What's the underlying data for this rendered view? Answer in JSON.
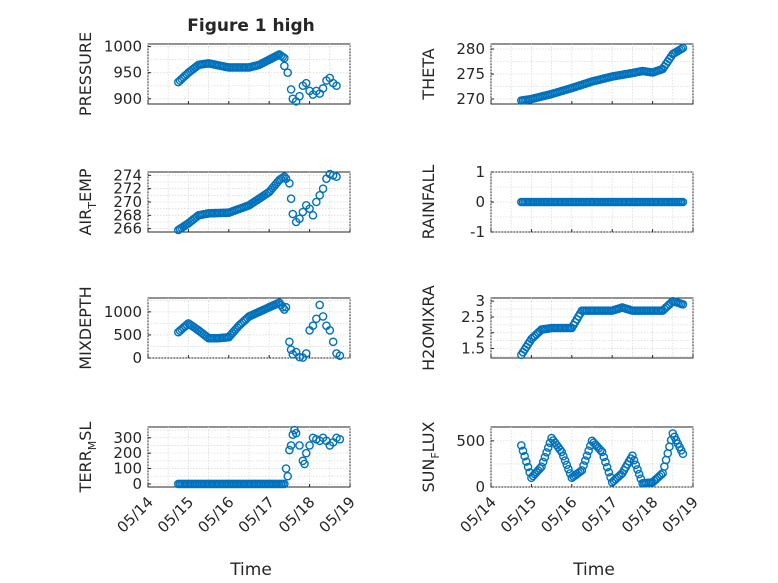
{
  "figure": {
    "title": "Figure 1 high",
    "xlabel": "Time"
  },
  "colors": {
    "marker": "#0072BD",
    "axes": "#262626",
    "grid": "#dcdcdc"
  },
  "chart_data": [
    {
      "id": "pressure",
      "type": "scatter",
      "title": "Figure 1 high",
      "ylabel": "PRESSURE",
      "xticks": [
        "05/14",
        "05/15",
        "05/16",
        "05/17",
        "05/18",
        "05/19"
      ],
      "xlim": [
        "05/14",
        "05/19"
      ],
      "ylim": [
        890,
        1005
      ],
      "yticks": [
        900,
        950,
        1000
      ],
      "x_knots": [
        "05/14 18:00",
        "05/15 00:00",
        "05/15 06:00",
        "05/15 12:00",
        "05/16 00:00",
        "05/16 12:00",
        "05/16 18:00",
        "05/17 00:00",
        "05/17 06:00",
        "05/17 09:00"
      ],
      "y_knots": [
        932,
        950,
        965,
        968,
        960,
        960,
        965,
        975,
        985,
        978
      ],
      "points": [
        [
          "05/17 09:00",
          963
        ],
        [
          "05/17 11:00",
          950
        ],
        [
          "05/17 13:00",
          918
        ],
        [
          "05/17 14:00",
          900
        ],
        [
          "05/17 16:00",
          895
        ],
        [
          "05/17 18:00",
          905
        ],
        [
          "05/17 20:00",
          925
        ],
        [
          "05/17 22:00",
          930
        ],
        [
          "05/18 00:00",
          915
        ],
        [
          "05/18 02:00",
          908
        ],
        [
          "05/18 04:00",
          915
        ],
        [
          "05/18 06:00",
          910
        ],
        [
          "05/18 08:00",
          920
        ],
        [
          "05/18 10:00",
          935
        ],
        [
          "05/18 12:00",
          940
        ],
        [
          "05/18 14:00",
          930
        ],
        [
          "05/18 16:00",
          925
        ]
      ]
    },
    {
      "id": "theta",
      "type": "scatter",
      "ylabel": "THETA",
      "xticks": [
        "05/14",
        "05/15",
        "05/16",
        "05/17",
        "05/18",
        "05/19"
      ],
      "xlim": [
        "05/14",
        "05/19"
      ],
      "ylim": [
        269,
        281
      ],
      "yticks": [
        270,
        275,
        280
      ],
      "x_knots": [
        "05/14 18:00",
        "05/15 00:00",
        "05/15 12:00",
        "05/16 00:00",
        "05/16 12:00",
        "05/17 00:00",
        "05/17 12:00",
        "05/17 18:00",
        "05/18 00:00",
        "05/18 06:00",
        "05/18 12:00",
        "05/18 18:00"
      ],
      "y_knots": [
        269.7,
        270,
        271,
        272.2,
        273.5,
        274.5,
        275.2,
        275.6,
        275.3,
        276,
        279,
        280.2
      ]
    },
    {
      "id": "air_temp",
      "type": "scatter",
      "ylabel": "AIR",
      "ylabel_sub": "T",
      "ylabel_suffix": "EMP",
      "xticks": [
        "05/14",
        "05/15",
        "05/16",
        "05/17",
        "05/18",
        "05/19"
      ],
      "xlim": [
        "05/14",
        "05/19"
      ],
      "ylim": [
        265.5,
        274.5
      ],
      "yticks": [
        266,
        268,
        270,
        272,
        274
      ],
      "x_knots": [
        "05/14 18:00",
        "05/15 00:00",
        "05/15 06:00",
        "05/15 12:00",
        "05/16 00:00",
        "05/16 12:00",
        "05/17 00:00",
        "05/17 06:00",
        "05/17 09:00"
      ],
      "y_knots": [
        265.8,
        266.8,
        268,
        268.3,
        268.4,
        269.5,
        271.5,
        273.3,
        273.8
      ],
      "points": [
        [
          "05/17 10:00",
          273.5
        ],
        [
          "05/17 12:00",
          272.8
        ],
        [
          "05/17 13:00",
          270.5
        ],
        [
          "05/17 14:00",
          268.2
        ],
        [
          "05/17 16:00",
          267
        ],
        [
          "05/17 18:00",
          267.5
        ],
        [
          "05/17 20:00",
          268.5
        ],
        [
          "05/17 22:00",
          269.5
        ],
        [
          "05/18 00:00",
          269
        ],
        [
          "05/18 02:00",
          268
        ],
        [
          "05/18 04:00",
          270
        ],
        [
          "05/18 06:00",
          271
        ],
        [
          "05/18 08:00",
          272
        ],
        [
          "05/18 10:00",
          273.5
        ],
        [
          "05/18 12:00",
          274.2
        ],
        [
          "05/18 14:00",
          274
        ],
        [
          "05/18 16:00",
          273.8
        ]
      ]
    },
    {
      "id": "rainfall",
      "type": "scatter",
      "ylabel": "RAINFALL",
      "xticks": [
        "05/14",
        "05/15",
        "05/16",
        "05/17",
        "05/18",
        "05/19"
      ],
      "xlim": [
        "05/14",
        "05/19"
      ],
      "ylim": [
        -1,
        1
      ],
      "yticks": [
        -1,
        0,
        1
      ],
      "x_knots": [
        "05/14 18:00",
        "05/18 18:00"
      ],
      "y_knots": [
        0,
        0
      ]
    },
    {
      "id": "mixdepth",
      "type": "scatter",
      "ylabel": "MIXDEPTH",
      "xticks": [
        "05/14",
        "05/15",
        "05/16",
        "05/17",
        "05/18",
        "05/19"
      ],
      "xlim": [
        "05/14",
        "05/19"
      ],
      "ylim": [
        0,
        1300
      ],
      "yticks": [
        0,
        500,
        1000
      ],
      "x_knots": [
        "05/14 18:00",
        "05/15 00:00",
        "05/15 06:00",
        "05/15 12:00",
        "05/15 18:00",
        "05/16 00:00",
        "05/16 06:00",
        "05/16 12:00",
        "05/17 00:00",
        "05/17 06:00",
        "05/17 09:00"
      ],
      "y_knots": [
        560,
        750,
        600,
        430,
        430,
        450,
        700,
        900,
        1100,
        1200,
        1050
      ],
      "points": [
        [
          "05/17 10:00",
          1100
        ],
        [
          "05/17 12:00",
          350
        ],
        [
          "05/17 13:00",
          180
        ],
        [
          "05/17 14:00",
          80
        ],
        [
          "05/17 16:00",
          130
        ],
        [
          "05/17 18:00",
          20
        ],
        [
          "05/17 20:00",
          10
        ],
        [
          "05/17 22:00",
          100
        ],
        [
          "05/18 00:00",
          600
        ],
        [
          "05/18 02:00",
          700
        ],
        [
          "05/18 04:00",
          850
        ],
        [
          "05/18 06:00",
          1150
        ],
        [
          "05/18 08:00",
          900
        ],
        [
          "05/18 10:00",
          700
        ],
        [
          "05/18 12:00",
          600
        ],
        [
          "05/18 14:00",
          350
        ],
        [
          "05/18 16:00",
          100
        ],
        [
          "05/18 18:00",
          50
        ]
      ]
    },
    {
      "id": "h2omixra",
      "type": "scatter",
      "ylabel": "H2OMIXRA",
      "xticks": [
        "05/14",
        "05/15",
        "05/16",
        "05/17",
        "05/18",
        "05/19"
      ],
      "xlim": [
        "05/14",
        "05/19"
      ],
      "ylim": [
        1.2,
        3.1
      ],
      "yticks": [
        1.5,
        2,
        2.5,
        3
      ],
      "x_knots": [
        "05/14 18:00",
        "05/15 00:00",
        "05/15 06:00",
        "05/15 12:00",
        "05/15 18:00",
        "05/16 00:00",
        "05/16 06:00",
        "05/17 00:00",
        "05/17 06:00",
        "05/17 12:00",
        "05/18 00:00",
        "05/18 06:00",
        "05/18 12:00",
        "05/18 18:00"
      ],
      "y_knots": [
        1.3,
        1.8,
        2.1,
        2.15,
        2.15,
        2.15,
        2.7,
        2.7,
        2.8,
        2.7,
        2.7,
        2.7,
        3.0,
        2.9
      ]
    },
    {
      "id": "terr_msl",
      "type": "scatter",
      "ylabel": "TERR",
      "ylabel_sub": "M",
      "ylabel_suffix": "SL",
      "xticks": [
        "05/14",
        "05/15",
        "05/16",
        "05/17",
        "05/18",
        "05/19"
      ],
      "xlim": [
        "05/14",
        "05/19"
      ],
      "ylim": [
        -20,
        370
      ],
      "yticks": [
        0,
        100,
        200,
        300
      ],
      "x_knots": [
        "05/14 18:00",
        "05/17 09:00"
      ],
      "y_knots": [
        0,
        0
      ],
      "points": [
        [
          "05/17 10:00",
          100
        ],
        [
          "05/17 11:00",
          50
        ],
        [
          "05/17 12:00",
          220
        ],
        [
          "05/17 13:00",
          250
        ],
        [
          "05/17 14:00",
          320
        ],
        [
          "05/17 15:00",
          350
        ],
        [
          "05/17 16:00",
          330
        ],
        [
          "05/17 18:00",
          250
        ],
        [
          "05/17 20:00",
          150
        ],
        [
          "05/17 21:00",
          130
        ],
        [
          "05/17 22:00",
          200
        ],
        [
          "05/18 00:00",
          250
        ],
        [
          "05/18 02:00",
          300
        ],
        [
          "05/18 04:00",
          290
        ],
        [
          "05/18 06:00",
          280
        ],
        [
          "05/18 08:00",
          300
        ],
        [
          "05/18 10:00",
          280
        ],
        [
          "05/18 12:00",
          250
        ],
        [
          "05/18 14:00",
          270
        ],
        [
          "05/18 16:00",
          300
        ],
        [
          "05/18 18:00",
          290
        ]
      ]
    },
    {
      "id": "sun_flux",
      "type": "scatter",
      "ylabel": "SUN",
      "ylabel_sub": "F",
      "ylabel_suffix": "LUX",
      "xticks": [
        "05/14",
        "05/15",
        "05/16",
        "05/17",
        "05/18",
        "05/19"
      ],
      "xlim": [
        "05/14",
        "05/19"
      ],
      "ylim": [
        0,
        650
      ],
      "yticks": [
        0,
        500
      ],
      "x_knots": [
        "05/14 18:00",
        "05/15 00:00",
        "05/15 06:00",
        "05/15 12:00",
        "05/15 18:00",
        "05/16 00:00",
        "05/16 06:00",
        "05/16 12:00",
        "05/16 18:00",
        "05/17 00:00",
        "05/17 06:00",
        "05/17 12:00",
        "05/17 18:00",
        "05/18 00:00",
        "05/18 06:00",
        "05/18 12:00",
        "05/18 18:00"
      ],
      "y_knots": [
        450,
        100,
        220,
        530,
        380,
        100,
        180,
        500,
        380,
        50,
        150,
        340,
        40,
        50,
        150,
        580,
        360
      ]
    }
  ]
}
